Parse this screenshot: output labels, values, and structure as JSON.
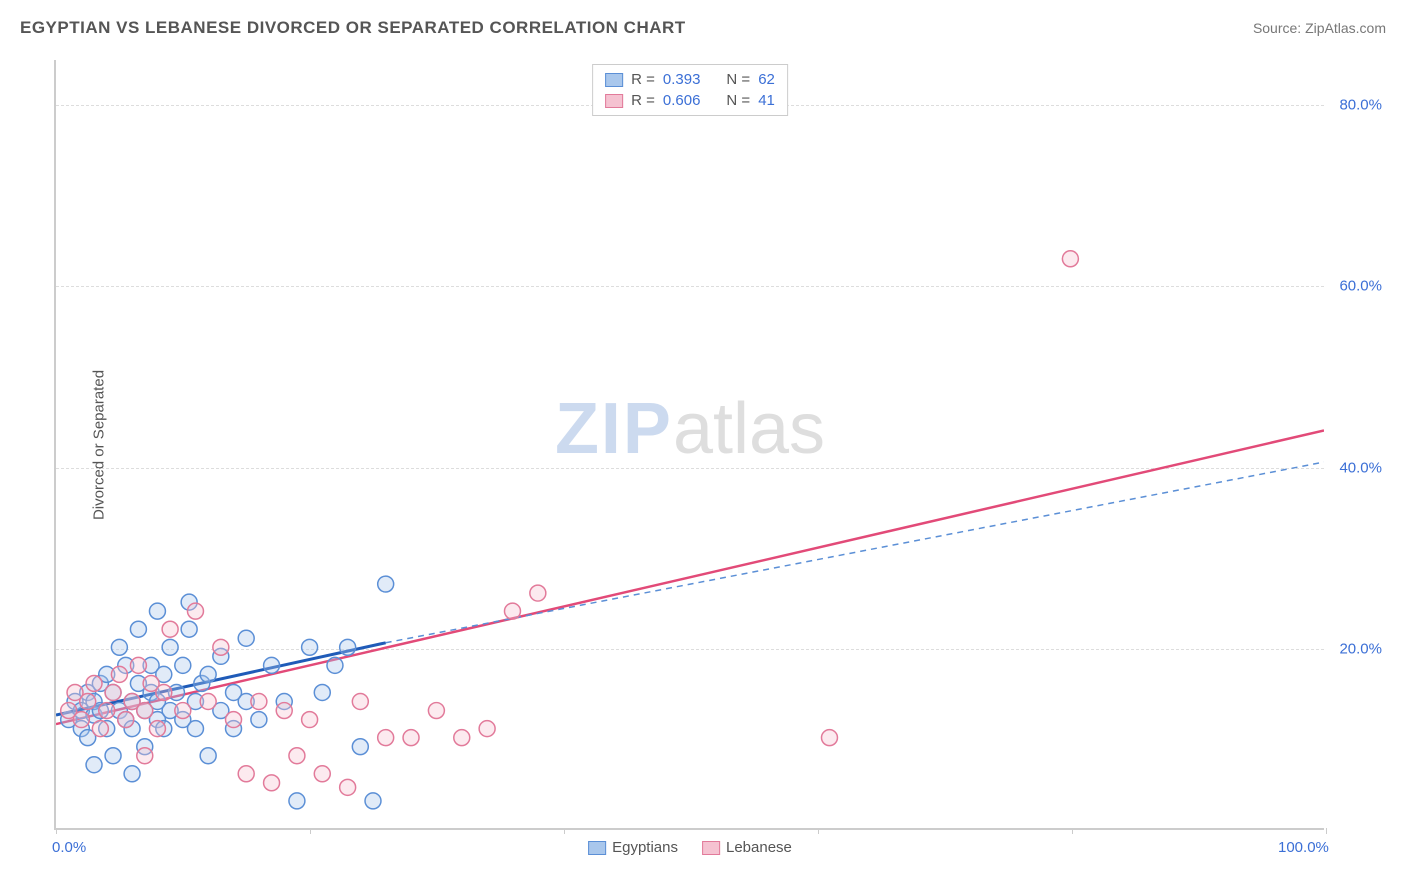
{
  "title": "EGYPTIAN VS LEBANESE DIVORCED OR SEPARATED CORRELATION CHART",
  "source": "Source: ZipAtlas.com",
  "ylabel": "Divorced or Separated",
  "watermark": {
    "part1": "ZIP",
    "part2": "atlas"
  },
  "chart": {
    "type": "scatter",
    "xlim": [
      0,
      100
    ],
    "ylim": [
      0,
      85
    ],
    "y_ticks": [
      20,
      40,
      60,
      80
    ],
    "y_tick_labels": [
      "20.0%",
      "40.0%",
      "60.0%",
      "80.0%"
    ],
    "x_ticks": [
      0,
      20,
      40,
      60,
      80,
      100
    ],
    "x_tick_labels_shown": {
      "0": "0.0%",
      "100": "100.0%"
    },
    "grid_color": "#dddddd",
    "axis_color": "#cccccc",
    "background_color": "#ffffff",
    "ytick_label_color": "#3b6fd6",
    "marker_radius": 8,
    "marker_stroke_width": 1.5,
    "marker_fill_opacity": 0.35,
    "series": [
      {
        "name": "Egyptians",
        "color_stroke": "#5b8fd6",
        "color_fill": "#a9c7ec",
        "R": 0.393,
        "N": 62,
        "trend": {
          "solid_from": [
            0,
            12.5
          ],
          "solid_to": [
            26,
            20.5
          ],
          "dash_to": [
            100,
            40.5
          ],
          "solid_color": "#1f5bb8",
          "solid_width": 3,
          "dash_color": "#5b8fd6",
          "dash_width": 1.5
        },
        "points": [
          [
            1,
            12
          ],
          [
            1.5,
            14
          ],
          [
            2,
            11
          ],
          [
            2,
            13
          ],
          [
            2.5,
            15
          ],
          [
            2.5,
            10
          ],
          [
            3,
            12.5
          ],
          [
            3,
            14
          ],
          [
            3.5,
            13
          ],
          [
            3.5,
            16
          ],
          [
            4,
            11
          ],
          [
            4,
            17
          ],
          [
            4.5,
            15
          ],
          [
            4.5,
            8
          ],
          [
            5,
            13
          ],
          [
            5,
            20
          ],
          [
            5.5,
            18
          ],
          [
            5.5,
            12
          ],
          [
            6,
            14
          ],
          [
            6,
            11
          ],
          [
            6.5,
            16
          ],
          [
            6.5,
            22
          ],
          [
            7,
            13
          ],
          [
            7,
            9
          ],
          [
            7.5,
            15
          ],
          [
            7.5,
            18
          ],
          [
            8,
            12
          ],
          [
            8,
            14
          ],
          [
            8.5,
            17
          ],
          [
            8.5,
            11
          ],
          [
            9,
            13
          ],
          [
            9,
            20
          ],
          [
            9.5,
            15
          ],
          [
            10,
            18
          ],
          [
            10,
            12
          ],
          [
            10.5,
            25
          ],
          [
            11,
            14
          ],
          [
            11,
            11
          ],
          [
            11.5,
            16
          ],
          [
            12,
            8
          ],
          [
            12,
            17
          ],
          [
            13,
            13
          ],
          [
            13,
            19
          ],
          [
            14,
            15
          ],
          [
            14,
            11
          ],
          [
            15,
            21
          ],
          [
            15,
            14
          ],
          [
            16,
            12
          ],
          [
            17,
            18
          ],
          [
            18,
            14
          ],
          [
            19,
            3
          ],
          [
            20,
            20
          ],
          [
            21,
            15
          ],
          [
            22,
            18
          ],
          [
            23,
            20
          ],
          [
            24,
            9
          ],
          [
            25,
            3
          ],
          [
            26,
            27
          ],
          [
            10.5,
            22
          ],
          [
            8,
            24
          ],
          [
            6,
            6
          ],
          [
            3,
            7
          ]
        ]
      },
      {
        "name": "Lebanese",
        "color_stroke": "#e27a9a",
        "color_fill": "#f5c2d1",
        "R": 0.606,
        "N": 41,
        "trend": {
          "solid_from": [
            0,
            11.5
          ],
          "solid_to": [
            100,
            44
          ],
          "solid_color": "#e24a78",
          "solid_width": 2.5
        },
        "points": [
          [
            1,
            13
          ],
          [
            1.5,
            15
          ],
          [
            2,
            12
          ],
          [
            2.5,
            14
          ],
          [
            3,
            16
          ],
          [
            3.5,
            11
          ],
          [
            4,
            13
          ],
          [
            4.5,
            15
          ],
          [
            5,
            17
          ],
          [
            5.5,
            12
          ],
          [
            6,
            14
          ],
          [
            6.5,
            18
          ],
          [
            7,
            13
          ],
          [
            7.5,
            16
          ],
          [
            8,
            11
          ],
          [
            8.5,
            15
          ],
          [
            9,
            22
          ],
          [
            10,
            13
          ],
          [
            11,
            24
          ],
          [
            12,
            14
          ],
          [
            13,
            20
          ],
          [
            14,
            12
          ],
          [
            15,
            6
          ],
          [
            16,
            14
          ],
          [
            17,
            5
          ],
          [
            18,
            13
          ],
          [
            19,
            8
          ],
          [
            20,
            12
          ],
          [
            21,
            6
          ],
          [
            23,
            4.5
          ],
          [
            24,
            14
          ],
          [
            26,
            10
          ],
          [
            28,
            10
          ],
          [
            30,
            13
          ],
          [
            32,
            10
          ],
          [
            34,
            11
          ],
          [
            36,
            24
          ],
          [
            38,
            26
          ],
          [
            61,
            10
          ],
          [
            80,
            63
          ],
          [
            7,
            8
          ]
        ]
      }
    ],
    "legend_top": [
      {
        "series_index": 0,
        "R_label": "R =",
        "R_value": "0.393",
        "N_label": "N =",
        "N_value": "62"
      },
      {
        "series_index": 1,
        "R_label": "R =",
        "R_value": "0.606",
        "N_label": "N =",
        "N_value": "41"
      }
    ],
    "legend_bottom": [
      {
        "series_index": 0,
        "label": "Egyptians"
      },
      {
        "series_index": 1,
        "label": "Lebanese"
      }
    ]
  }
}
